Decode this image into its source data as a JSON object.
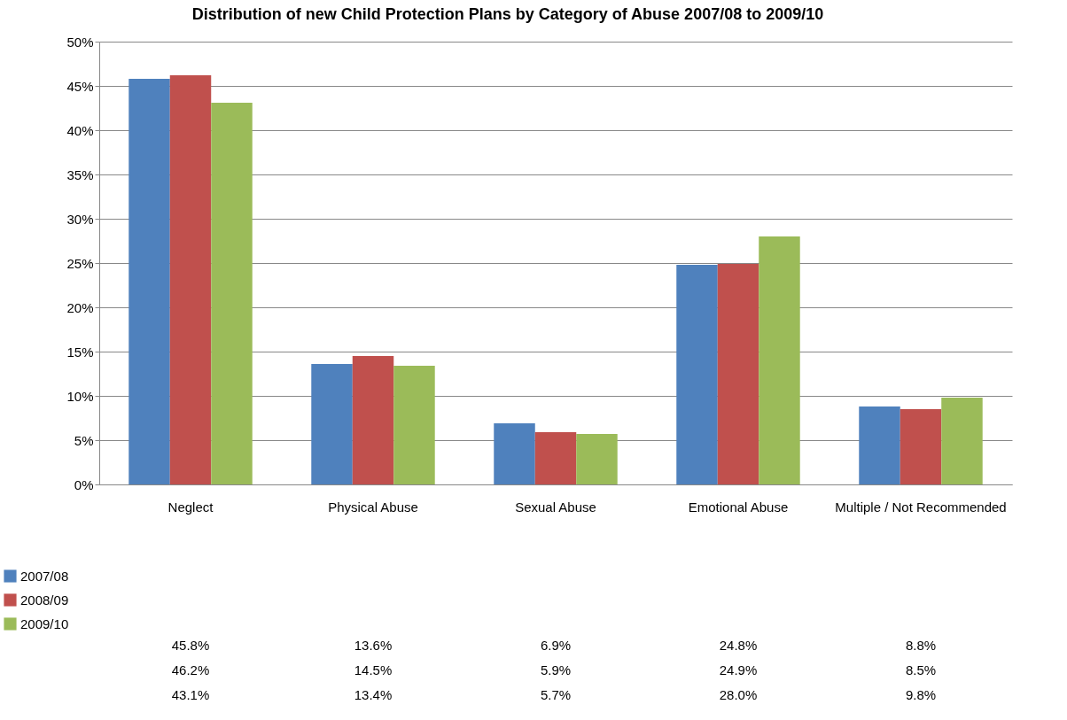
{
  "chart_data": {
    "type": "bar",
    "title": "Distribution of new Child Protection Plans by Category of Abuse 2007/08 to 2009/10",
    "categories": [
      "Neglect",
      "Physical Abuse",
      "Sexual Abuse",
      "Emotional Abuse",
      "Multiple / Not Recommended"
    ],
    "series": [
      {
        "name": "2007/08",
        "color": "#4f81bd",
        "values": [
          45.8,
          13.6,
          6.9,
          24.8,
          8.8
        ],
        "value_labels": [
          "45.8%",
          "13.6%",
          "6.9%",
          "24.8%",
          "8.8%"
        ]
      },
      {
        "name": "2008/09",
        "color": "#c0504d",
        "values": [
          46.2,
          14.5,
          5.9,
          24.9,
          8.5
        ],
        "value_labels": [
          "46.2%",
          "14.5%",
          "5.9%",
          "24.9%",
          "8.5%"
        ]
      },
      {
        "name": "2009/10",
        "color": "#9bbb59",
        "values": [
          43.1,
          13.4,
          5.7,
          28.0,
          9.8
        ],
        "value_labels": [
          "43.1%",
          "13.4%",
          "5.7%",
          "28.0%",
          "9.8%"
        ]
      }
    ],
    "ylim": [
      0,
      50
    ],
    "yticks": [
      {
        "value": 0,
        "label": "0%"
      },
      {
        "value": 5,
        "label": "5%"
      },
      {
        "value": 10,
        "label": "10%"
      },
      {
        "value": 15,
        "label": "15%"
      },
      {
        "value": 20,
        "label": "20%"
      },
      {
        "value": 25,
        "label": "25%"
      },
      {
        "value": 30,
        "label": "30%"
      },
      {
        "value": 35,
        "label": "35%"
      },
      {
        "value": 40,
        "label": "40%"
      },
      {
        "value": 45,
        "label": "45%"
      },
      {
        "value": 50,
        "label": "50%"
      }
    ],
    "grid": "y",
    "legend": "bottom left"
  }
}
